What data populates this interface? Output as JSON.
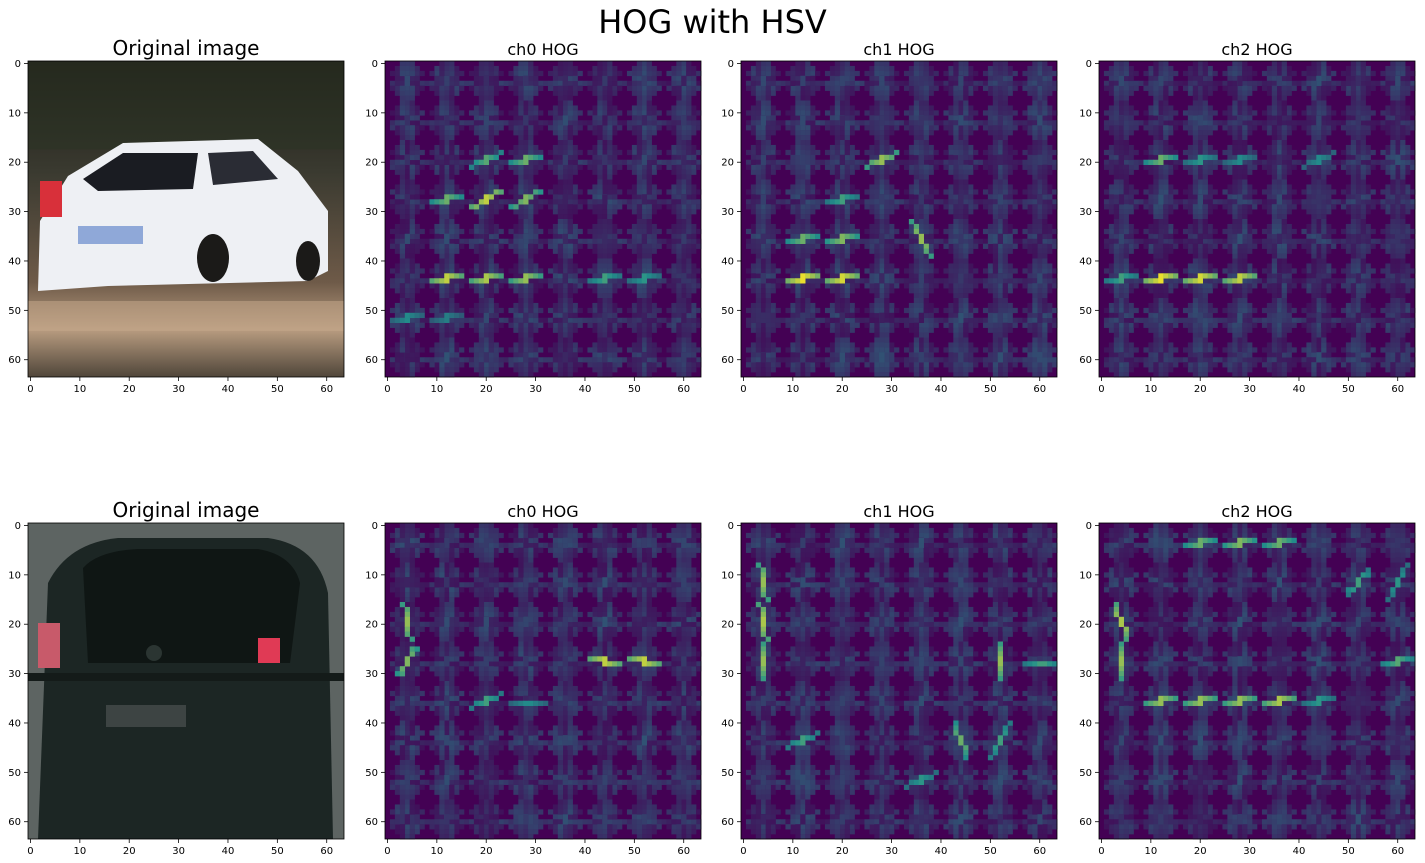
{
  "figure": {
    "title": "HOG with HSV",
    "rows": [
      {
        "panels": [
          {
            "kind": "photo",
            "title": "Original image",
            "photo": "white-car-rear"
          },
          {
            "kind": "hog",
            "title": "ch0 HOG",
            "pattern": "r1c0"
          },
          {
            "kind": "hog",
            "title": "ch1 HOG",
            "pattern": "r1c1"
          },
          {
            "kind": "hog",
            "title": "ch2 HOG",
            "pattern": "r1c2"
          }
        ]
      },
      {
        "panels": [
          {
            "kind": "photo",
            "title": "Original image",
            "photo": "dark-car-rear"
          },
          {
            "kind": "hog",
            "title": "ch0 HOG",
            "pattern": "r2c0"
          },
          {
            "kind": "hog",
            "title": "ch1 HOG",
            "pattern": "r2c1"
          },
          {
            "kind": "hog",
            "title": "ch2 HOG",
            "pattern": "r2c2"
          }
        ]
      }
    ],
    "xticks": [
      "0",
      "10",
      "20",
      "30",
      "40",
      "50",
      "60"
    ],
    "yticks": [
      "0",
      "10",
      "20",
      "30",
      "40",
      "50",
      "60"
    ],
    "tick_values": [
      0,
      10,
      20,
      30,
      40,
      50,
      60
    ],
    "image_size": 64,
    "colormap": {
      "low": "#440154",
      "mid": "#21918c",
      "high": "#fde725"
    }
  }
}
